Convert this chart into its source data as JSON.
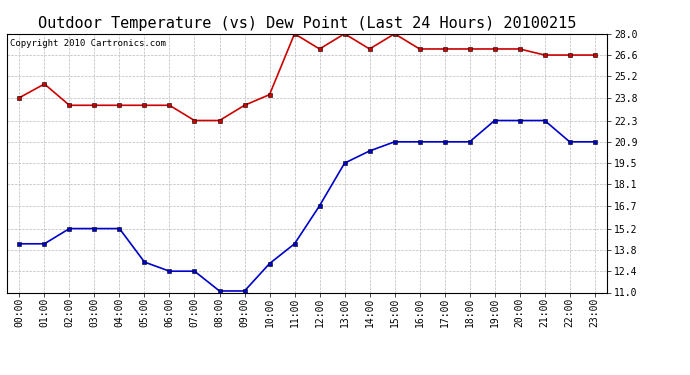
{
  "title": "Outdoor Temperature (vs) Dew Point (Last 24 Hours) 20100215",
  "copyright": "Copyright 2010 Cartronics.com",
  "x_labels": [
    "00:00",
    "01:00",
    "02:00",
    "03:00",
    "04:00",
    "05:00",
    "06:00",
    "07:00",
    "08:00",
    "09:00",
    "10:00",
    "11:00",
    "12:00",
    "13:00",
    "14:00",
    "15:00",
    "16:00",
    "17:00",
    "18:00",
    "19:00",
    "20:00",
    "21:00",
    "22:00",
    "23:00"
  ],
  "temp_data": [
    23.8,
    24.7,
    23.3,
    23.3,
    23.3,
    23.3,
    23.3,
    22.3,
    22.3,
    23.3,
    24.0,
    28.0,
    27.0,
    28.0,
    27.0,
    28.0,
    27.0,
    27.0,
    27.0,
    27.0,
    27.0,
    26.6,
    26.6,
    26.6
  ],
  "dew_data": [
    14.2,
    14.2,
    15.2,
    15.2,
    15.2,
    13.0,
    12.4,
    12.4,
    11.1,
    11.1,
    12.9,
    14.2,
    16.7,
    19.5,
    20.3,
    20.9,
    20.9,
    20.9,
    20.9,
    22.3,
    22.3,
    22.3,
    20.9,
    20.9
  ],
  "temp_color": "#cc0000",
  "dew_color": "#0000cc",
  "bg_color": "#ffffff",
  "grid_color": "#bbbbbb",
  "ylim": [
    11.0,
    28.0
  ],
  "yticks": [
    11.0,
    12.4,
    13.8,
    15.2,
    16.7,
    18.1,
    19.5,
    20.9,
    22.3,
    23.8,
    25.2,
    26.6,
    28.0
  ],
  "marker": "s",
  "marker_size": 3,
  "line_width": 1.2,
  "title_fontsize": 11,
  "tick_fontsize": 7,
  "copyright_fontsize": 6.5
}
